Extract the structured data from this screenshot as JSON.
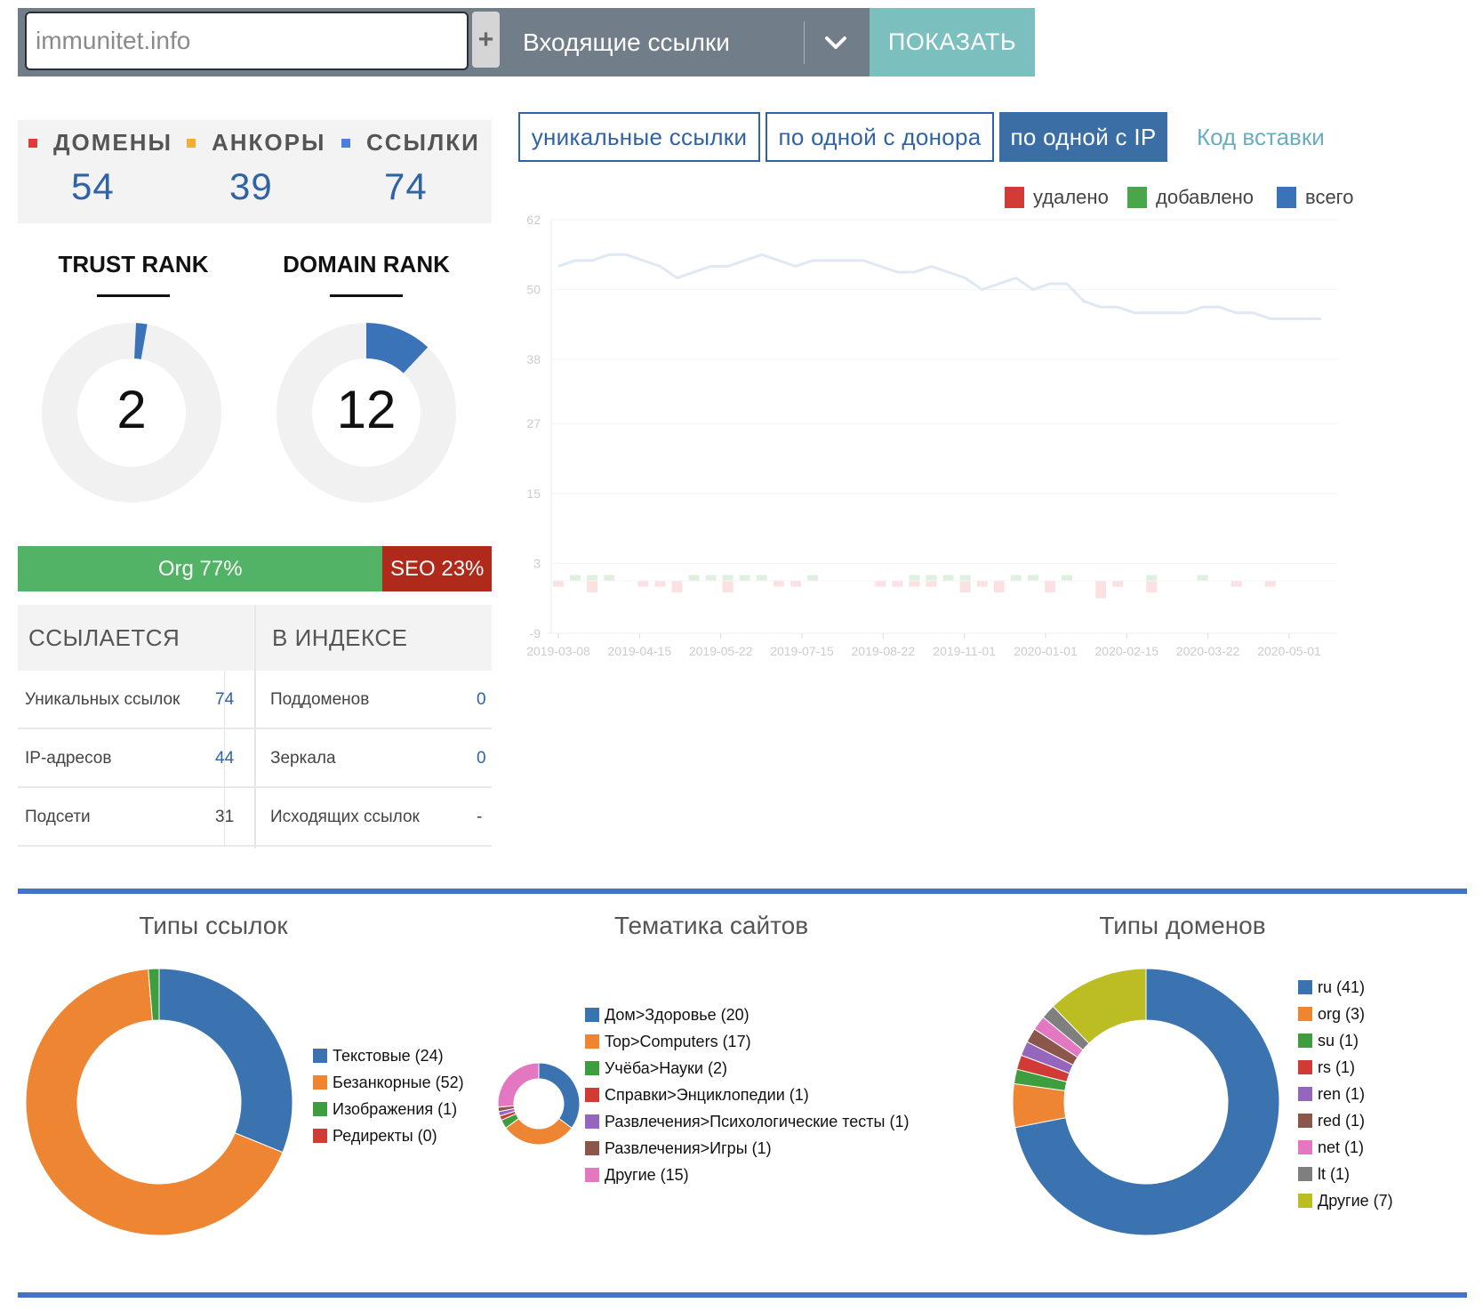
{
  "search": {
    "value": "immunitet.info"
  },
  "toolbar": {
    "plus_label": "+",
    "select_label": "Входящие ссылки",
    "show_label": "ПОКАЗАТЬ"
  },
  "counters": [
    {
      "label": "ДОМЕНЫ",
      "value": "54",
      "color": "#e03a3a"
    },
    {
      "label": "АНКОРЫ",
      "value": "39",
      "color": "#f0b030"
    },
    {
      "label": "ССЫЛКИ",
      "value": "74",
      "color": "#4a7fe0"
    }
  ],
  "ranks": {
    "trust": {
      "title": "TRUST RANK",
      "value": "2",
      "fraction": 0.02
    },
    "domain": {
      "title": "DOMAIN RANK",
      "value": "12",
      "fraction": 0.12
    }
  },
  "orgseo": {
    "org_label": "Org 77%",
    "org_pct": 77,
    "seo_label": "SEO 23%",
    "seo_pct": 23
  },
  "link_table": {
    "headers": [
      "ССЫЛАЕТСЯ",
      "В ИНДЕКСЕ"
    ],
    "rows": [
      {
        "left_label": "Уникальных ссылок",
        "left_value": "74",
        "right_label": "Поддоменов",
        "right_value": "0"
      },
      {
        "left_label": "IP-адресов",
        "left_value": "44",
        "right_label": "Зеркала",
        "right_value": "0"
      },
      {
        "left_label": "Подсети",
        "left_value": "31",
        "right_label": "Исходящих ссылок",
        "right_value": "-"
      }
    ]
  },
  "tabs": [
    "уникальные ссылки",
    "по одной с донора",
    "по одной с IP"
  ],
  "active_tab": 2,
  "embed_link": "Код вставки",
  "chart_data": [
    {
      "type": "line",
      "legend": [
        {
          "name": "удалено",
          "color": "#d23b36"
        },
        {
          "name": "добавлено",
          "color": "#4aa64a"
        },
        {
          "name": "всего",
          "color": "#3a73b8"
        }
      ],
      "y_ticks": [
        "62",
        "50",
        "38",
        "27",
        "15",
        "3",
        "-9"
      ],
      "ylim": [
        -9,
        62
      ],
      "x_ticks": [
        "2019-03-08",
        "2019-04-15",
        "2019-05-22",
        "2019-07-15",
        "2019-08-22",
        "2019-11-01",
        "2020-01-01",
        "2020-02-15",
        "2020-03-22",
        "2020-05-01"
      ],
      "series": [
        {
          "name": "всего",
          "values": [
            54,
            55,
            55,
            56,
            56,
            55,
            54,
            52,
            53,
            54,
            54,
            55,
            56,
            55,
            54,
            55,
            55,
            55,
            55,
            54,
            53,
            53,
            54,
            53,
            52,
            50,
            51,
            52,
            50,
            51,
            51,
            48,
            47,
            47,
            46,
            46,
            46,
            46,
            47,
            47,
            46,
            46,
            45,
            45,
            45,
            45
          ]
        },
        {
          "name": "добавлено",
          "values": [
            0,
            1,
            1,
            1,
            0,
            0,
            0,
            0,
            1,
            1,
            1,
            1,
            1,
            0,
            0,
            1,
            0,
            0,
            0,
            0,
            0,
            1,
            1,
            1,
            1,
            0,
            0,
            1,
            1,
            0,
            1,
            0,
            0,
            0,
            0,
            1,
            0,
            0,
            1,
            0,
            0,
            0,
            0,
            0,
            0,
            0
          ]
        },
        {
          "name": "удалено",
          "values": [
            1,
            0,
            2,
            0,
            0,
            1,
            1,
            2,
            0,
            0,
            2,
            0,
            0,
            1,
            1,
            0,
            0,
            0,
            0,
            1,
            1,
            1,
            1,
            0,
            2,
            1,
            2,
            0,
            0,
            2,
            0,
            0,
            3,
            1,
            0,
            2,
            0,
            0,
            0,
            0,
            1,
            0,
            1,
            0,
            0,
            0
          ]
        }
      ]
    },
    {
      "type": "pie",
      "title": "Типы ссылок",
      "slices": [
        {
          "label": "Текстовые (24)",
          "value": 24,
          "color": "#3a73b0"
        },
        {
          "label": "Безанкорные (52)",
          "value": 52,
          "color": "#ee8533"
        },
        {
          "label": "Изображения (1)",
          "value": 1,
          "color": "#3e9e3e"
        },
        {
          "label": "Редиректы (0)",
          "value": 0,
          "color": "#d13b35"
        }
      ]
    },
    {
      "type": "pie",
      "title": "Тематика сайтов",
      "slices": [
        {
          "label": "Дом>Здоровье (20)",
          "value": 20,
          "color": "#3a73b0"
        },
        {
          "label": "Top>Computers (17)",
          "value": 17,
          "color": "#ee8533"
        },
        {
          "label": "Учёба>Науки (2)",
          "value": 2,
          "color": "#3e9e3e"
        },
        {
          "label": "Справки>Энциклопедии (1)",
          "value": 1,
          "color": "#d13b35"
        },
        {
          "label": "Развлечения>Психологические тесты (1)",
          "value": 1,
          "color": "#9467bd"
        },
        {
          "label": "Развлечения>Игры (1)",
          "value": 1,
          "color": "#8c564b"
        },
        {
          "label": "Другие (15)",
          "value": 15,
          "color": "#e377c2"
        }
      ]
    },
    {
      "type": "pie",
      "title": "Типы доменов",
      "slices": [
        {
          "label": "ru (41)",
          "value": 41,
          "color": "#3a73b0"
        },
        {
          "label": "org (3)",
          "value": 3,
          "color": "#ee8533"
        },
        {
          "label": "su (1)",
          "value": 1,
          "color": "#3e9e3e"
        },
        {
          "label": "rs (1)",
          "value": 1,
          "color": "#d13b35"
        },
        {
          "label": "ren (1)",
          "value": 1,
          "color": "#9467bd"
        },
        {
          "label": "red (1)",
          "value": 1,
          "color": "#8c564b"
        },
        {
          "label": "net (1)",
          "value": 1,
          "color": "#e377c2"
        },
        {
          "label": "lt (1)",
          "value": 1,
          "color": "#7f7f7f"
        },
        {
          "label": "Другие (7)",
          "value": 7,
          "color": "#bcbd22"
        }
      ]
    }
  ]
}
